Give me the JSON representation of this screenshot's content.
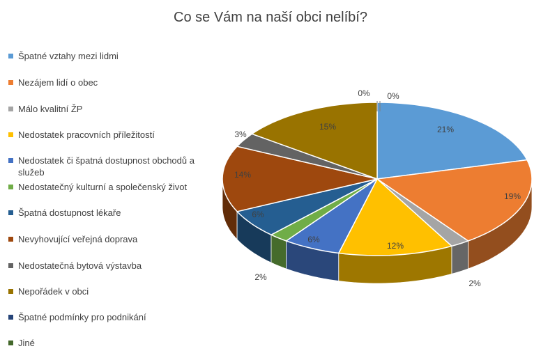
{
  "chart_data": {
    "type": "pie",
    "title": "Co se Vám na naší obci nelíbí?",
    "legend_position": "left",
    "three_d": true,
    "slices": [
      {
        "label": "Špatné vztahy mezi lidmi",
        "value": 21,
        "data_label": "21%",
        "color": "#5B9BD5"
      },
      {
        "label": "Nezájem lidí o obec",
        "value": 19,
        "data_label": "19%",
        "color": "#ED7D31"
      },
      {
        "label": "Málo kvalitní ŽP",
        "value": 2,
        "data_label": "2%",
        "color": "#A5A5A5"
      },
      {
        "label": "Nedostatek pracovních příležitostí",
        "value": 12,
        "data_label": "12%",
        "color": "#FFC000"
      },
      {
        "label": "Nedostatek či špatná dostupnost obchodů a služeb",
        "value": 6,
        "data_label": "6%",
        "color": "#4472C4"
      },
      {
        "label": "Nedostatečný kulturní a společenský život",
        "value": 2,
        "data_label": "2%",
        "color": "#70AD47"
      },
      {
        "label": "Špatná dostupnost lékaře",
        "value": 6,
        "data_label": "6%",
        "color": "#255E91"
      },
      {
        "label": "Nevyhovující veřejná doprava",
        "value": 14,
        "data_label": "14%",
        "color": "#9E480E"
      },
      {
        "label": "Nedostatečná bytová výstavba",
        "value": 3,
        "data_label": "3%",
        "color": "#636363"
      },
      {
        "label": "Nepořádek v obci",
        "value": 15,
        "data_label": "15%",
        "color": "#997300"
      },
      {
        "label": "Špatné podmínky pro podnikání",
        "value": 0,
        "data_label": "0%",
        "color": "#264478"
      },
      {
        "label": "Jiné",
        "value": 0,
        "data_label": "0%",
        "color": "#43682B"
      }
    ]
  }
}
